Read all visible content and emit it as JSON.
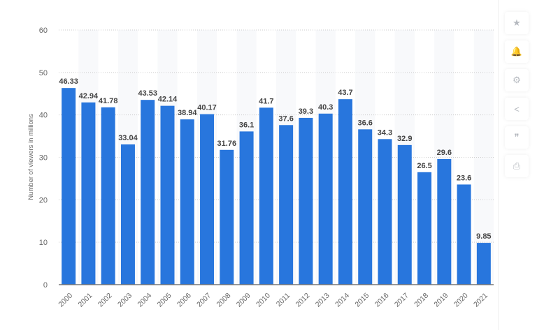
{
  "chart_data": {
    "type": "bar",
    "categories": [
      "2000",
      "2001",
      "2002",
      "2003",
      "2004",
      "2005",
      "2006",
      "2007",
      "2008",
      "2009",
      "2010",
      "2011",
      "2012",
      "2013",
      "2014",
      "2015",
      "2016",
      "2017",
      "2018",
      "2019",
      "2020",
      "2021"
    ],
    "values": [
      46.33,
      42.94,
      41.78,
      33.04,
      43.53,
      42.14,
      38.94,
      40.17,
      31.76,
      36.1,
      41.7,
      37.6,
      39.3,
      40.3,
      43.7,
      36.6,
      34.3,
      32.9,
      26.5,
      29.6,
      23.6,
      9.85
    ],
    "data_labels": [
      "46.33",
      "42.94",
      "41.78",
      "33.04",
      "43.53",
      "42.14",
      "38.94",
      "40.17",
      "31.76",
      "36.1",
      "41.7",
      "37.6",
      "39.3",
      "40.3",
      "43.7",
      "36.6",
      "34.3",
      "32.9",
      "26.5",
      "29.6",
      "23.6",
      "9.85"
    ],
    "ylabel": "Number of viewers in millions",
    "xlabel": "",
    "ylim": [
      0,
      60
    ],
    "yticks": [
      "0",
      "10",
      "20",
      "30",
      "40",
      "50",
      "60"
    ],
    "grid": true,
    "bar_color": "#2876dd"
  },
  "toolbar": {
    "icons": [
      "star-icon",
      "bell-icon",
      "gear-icon",
      "share-icon",
      "quote-icon",
      "print-icon"
    ],
    "glyphs": [
      "★",
      "🔔",
      "⚙",
      "<",
      "❞",
      "⎙"
    ]
  }
}
